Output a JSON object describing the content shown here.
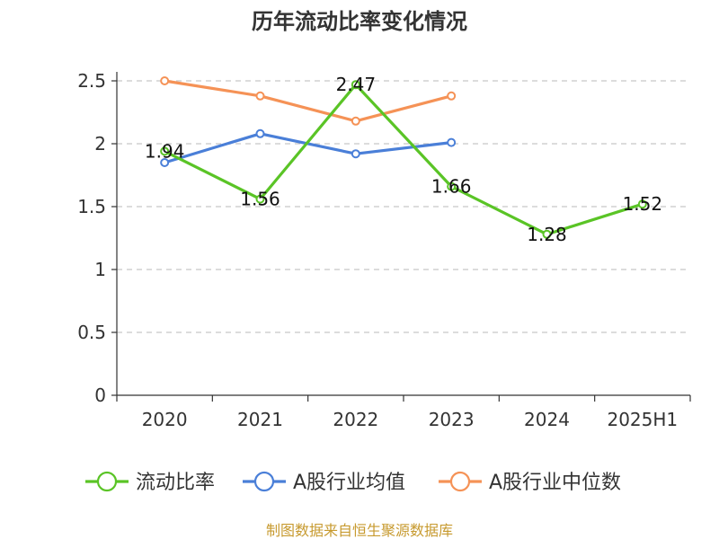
{
  "title": "历年流动比率变化情况",
  "source": "制图数据来自恒生聚源数据库",
  "chart_data": {
    "type": "line",
    "title": "历年流动比率变化情况",
    "categories": [
      "2020",
      "2021",
      "2022",
      "2023",
      "2024",
      "2025H1"
    ],
    "y_ticks": [
      "0",
      "0.5",
      "1",
      "1.5",
      "2",
      "2.5"
    ],
    "ylim": [
      0,
      2.5
    ],
    "grid": "horizontal-dashed",
    "legend_position": "bottom",
    "series": [
      {
        "name": "流动比率",
        "color": "#5ac426",
        "values": [
          1.94,
          1.56,
          2.47,
          1.66,
          1.28,
          1.52
        ],
        "labels": [
          "1.94",
          "1.56",
          "2.47",
          "1.66",
          "1.28",
          "1.52"
        ]
      },
      {
        "name": "A股行业均值",
        "color": "#4a7fd8",
        "values": [
          1.85,
          2.08,
          1.92,
          2.01,
          null,
          null
        ]
      },
      {
        "name": "A股行业中位数",
        "color": "#f59256",
        "values": [
          2.5,
          2.38,
          2.18,
          2.38,
          null,
          null
        ]
      }
    ]
  }
}
